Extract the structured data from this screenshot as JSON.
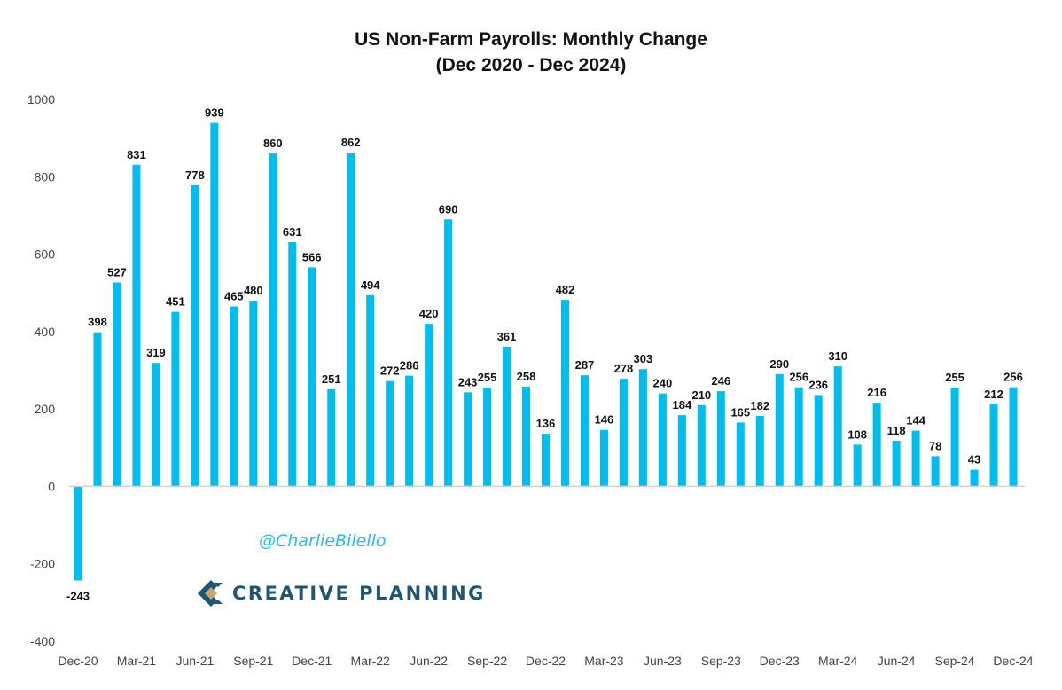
{
  "chart_data": {
    "type": "bar",
    "title": "US Non-Farm Payrolls: Monthly Change",
    "subtitle": "(Dec 2020 - Dec 2024)",
    "xlabel": "",
    "ylabel": "",
    "ylim": [
      -400,
      1000
    ],
    "yticks": [
      "1000",
      "800",
      "600",
      "400",
      "200",
      "0",
      "-200",
      "-400"
    ],
    "grid": false,
    "bar_color": "#00bdf0",
    "categories": [
      "Dec-20",
      "Jan-21",
      "Feb-21",
      "Mar-21",
      "Apr-21",
      "May-21",
      "Jun-21",
      "Jul-21",
      "Aug-21",
      "Sep-21",
      "Oct-21",
      "Nov-21",
      "Dec-21",
      "Jan-22",
      "Feb-22",
      "Mar-22",
      "Apr-22",
      "May-22",
      "Jun-22",
      "Jul-22",
      "Aug-22",
      "Sep-22",
      "Oct-22",
      "Nov-22",
      "Dec-22",
      "Jan-23",
      "Feb-23",
      "Mar-23",
      "Apr-23",
      "May-23",
      "Jun-23",
      "Jul-23",
      "Aug-23",
      "Sep-23",
      "Oct-23",
      "Nov-23",
      "Dec-23",
      "Jan-24",
      "Feb-24",
      "Mar-24",
      "Apr-24",
      "May-24",
      "Jun-24",
      "Jul-24",
      "Aug-24",
      "Sep-24",
      "Oct-24",
      "Nov-24",
      "Dec-24"
    ],
    "values": [
      -243,
      398,
      527,
      831,
      319,
      451,
      778,
      939,
      465,
      480,
      860,
      631,
      566,
      251,
      862,
      494,
      272,
      286,
      420,
      690,
      243,
      255,
      361,
      258,
      136,
      482,
      287,
      146,
      278,
      303,
      240,
      184,
      210,
      246,
      165,
      182,
      290,
      256,
      236,
      310,
      108,
      216,
      118,
      144,
      78,
      255,
      43,
      212,
      256
    ],
    "xtick_every": 3
  },
  "watermark": {
    "handle": "@CharlieBilello",
    "logo_text": "CREATIVE PLANNING",
    "logo_colors": {
      "navy": "#1e5572",
      "gold": "#c9a66b"
    }
  }
}
